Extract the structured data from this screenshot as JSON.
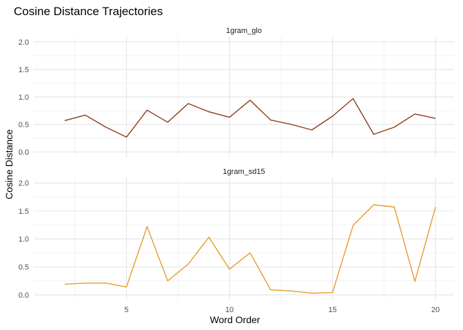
{
  "chart_data": {
    "type": "line",
    "title": "Cosine Distance Trajectories",
    "xlabel": "Word Order",
    "ylabel": "Cosine Distance",
    "xlim": [
      0.5,
      20.9
    ],
    "ylim": [
      -0.1,
      2.1
    ],
    "x_ticks": [
      5,
      10,
      15,
      20
    ],
    "y_ticks": [
      0.0,
      0.5,
      1.0,
      1.5,
      2.0
    ],
    "y_tick_labels": [
      "0.0",
      "0.5",
      "1.0",
      "1.5",
      "2.0"
    ],
    "grid": true,
    "legend": "none",
    "panels": [
      {
        "label": "1gram_glo",
        "color": "#8B3A12",
        "x": [
          2,
          3,
          4,
          5,
          6,
          7,
          8,
          9,
          10,
          11,
          12,
          13,
          14,
          15,
          16,
          17,
          18,
          19,
          20
        ],
        "values": [
          0.57,
          0.67,
          0.45,
          0.27,
          0.76,
          0.54,
          0.88,
          0.73,
          0.63,
          0.94,
          0.58,
          0.5,
          0.4,
          0.65,
          0.97,
          0.32,
          0.45,
          0.69,
          0.61
        ]
      },
      {
        "label": "1gram_sd15",
        "color": "#E59A2B",
        "x": [
          2,
          3,
          4,
          5,
          6,
          7,
          8,
          9,
          10,
          11,
          12,
          13,
          14,
          15,
          16,
          17,
          18,
          19,
          20
        ],
        "values": [
          0.19,
          0.21,
          0.21,
          0.14,
          1.22,
          0.25,
          0.55,
          1.03,
          0.46,
          0.75,
          0.09,
          0.07,
          0.03,
          0.04,
          1.24,
          1.61,
          1.57,
          0.24,
          1.57
        ]
      }
    ]
  }
}
